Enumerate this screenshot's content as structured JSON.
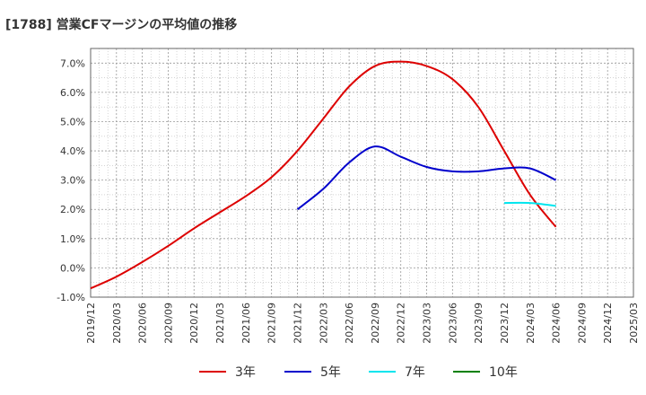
{
  "chart_data": {
    "type": "line",
    "title": "[1788]  営業CFマージンの平均値の推移",
    "xlabel": "",
    "ylabel": "",
    "x_ticks": [
      "2019/12",
      "2020/03",
      "2020/06",
      "2020/09",
      "2020/12",
      "2021/03",
      "2021/06",
      "2021/09",
      "2021/12",
      "2022/03",
      "2022/06",
      "2022/09",
      "2022/12",
      "2023/03",
      "2023/06",
      "2023/09",
      "2023/12",
      "2024/03",
      "2024/06",
      "2024/09",
      "2024/12",
      "2025/03"
    ],
    "y_ticks": [
      "-1.0%",
      "0.0%",
      "1.0%",
      "2.0%",
      "3.0%",
      "4.0%",
      "5.0%",
      "6.0%",
      "7.0%"
    ],
    "ylim": [
      -1.0,
      7.5
    ],
    "grid": true,
    "legend_position": "bottom",
    "series": [
      {
        "name": "3年",
        "color": "#dd0000",
        "x": [
          "2019/12",
          "2020/03",
          "2020/06",
          "2020/09",
          "2020/12",
          "2021/03",
          "2021/06",
          "2021/09",
          "2021/12",
          "2022/03",
          "2022/06",
          "2022/09",
          "2022/12",
          "2023/03",
          "2023/06",
          "2023/09",
          "2023/12",
          "2024/03",
          "2024/06"
        ],
        "values": [
          -0.7,
          -0.3,
          0.2,
          0.75,
          1.35,
          1.9,
          2.45,
          3.1,
          4.0,
          5.1,
          6.2,
          6.9,
          7.05,
          6.9,
          6.45,
          5.5,
          4.0,
          2.5,
          1.4
        ]
      },
      {
        "name": "5年",
        "color": "#0000cc",
        "x": [
          "2021/12",
          "2022/03",
          "2022/06",
          "2022/09",
          "2022/12",
          "2023/03",
          "2023/06",
          "2023/09",
          "2023/12",
          "2024/03",
          "2024/06"
        ],
        "values": [
          2.0,
          2.7,
          3.6,
          4.15,
          3.8,
          3.45,
          3.3,
          3.3,
          3.4,
          3.4,
          3.0
        ]
      },
      {
        "name": "7年",
        "color": "#00e5ee",
        "x": [
          "2023/12",
          "2024/03",
          "2024/06"
        ],
        "values": [
          2.22,
          2.22,
          2.12
        ]
      },
      {
        "name": "10年",
        "color": "#008000",
        "x": [],
        "values": []
      }
    ]
  }
}
